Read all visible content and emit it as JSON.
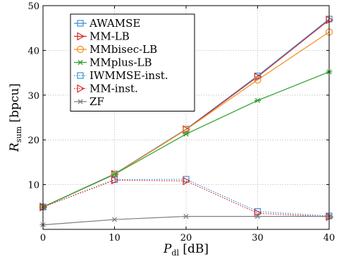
{
  "chart_data": {
    "type": "line",
    "xlabel": {
      "main": "P",
      "sub": "dl",
      "unit": " [dB]"
    },
    "ylabel": {
      "main": "R",
      "sub": "sum",
      "unit": " [bpcu]"
    },
    "x": [
      0,
      10,
      20,
      30,
      40
    ],
    "xlim": [
      0,
      40
    ],
    "ylim": [
      0,
      50
    ],
    "xticks": [
      0,
      10,
      20,
      30,
      40
    ],
    "yticks": [
      10,
      20,
      30,
      40,
      50
    ],
    "grid": true,
    "legend_position": "top-left",
    "series": [
      {
        "name": "AWAMSE",
        "values": [
          5.0,
          12.4,
          22.4,
          34.3,
          47.0
        ],
        "color": "#3a8fd6",
        "marker": "square",
        "dash": "solid"
      },
      {
        "name": "MM-LB",
        "values": [
          5.0,
          12.3,
          22.3,
          34.1,
          46.8
        ],
        "color": "#d62728",
        "marker": "triangle",
        "dash": "solid"
      },
      {
        "name": "MMbisec-LB",
        "values": [
          5.0,
          12.3,
          22.3,
          33.4,
          44.1
        ],
        "color": "#f28e1c",
        "marker": "circle",
        "dash": "solid"
      },
      {
        "name": "MMplus-LB",
        "values": [
          5.0,
          12.3,
          21.3,
          28.8,
          35.2
        ],
        "color": "#2ca02c",
        "marker": "star",
        "dash": "solid"
      },
      {
        "name": "IWMMSE-inst.",
        "values": [
          5.0,
          11.1,
          11.2,
          4.0,
          3.0
        ],
        "color": "#3a8fd6",
        "marker": "square",
        "dash": "dotted"
      },
      {
        "name": "MM-inst.",
        "values": [
          5.0,
          11.0,
          10.8,
          3.6,
          2.8
        ],
        "color": "#d62728",
        "marker": "triangle",
        "dash": "dotted"
      },
      {
        "name": "ZF",
        "values": [
          1.0,
          2.2,
          2.9,
          2.9,
          2.9
        ],
        "color": "#808080",
        "marker": "star",
        "dash": "solid"
      }
    ]
  }
}
